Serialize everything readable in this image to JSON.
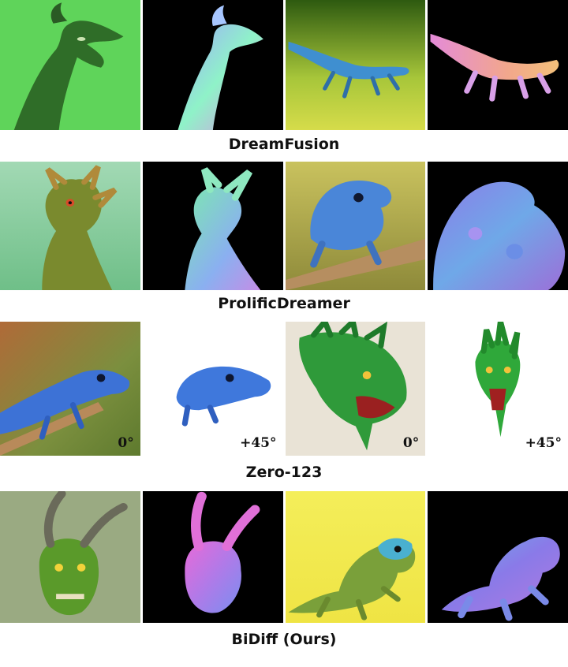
{
  "rows": [
    {
      "caption": "DreamFusion",
      "panels": [
        {
          "subject": "dragon-rgb",
          "background": "#5fd45a"
        },
        {
          "subject": "dragon-normal",
          "background": "#000000"
        },
        {
          "subject": "lizard-rgb",
          "background": "#b8cf3a"
        },
        {
          "subject": "lizard-normal",
          "background": "#000000"
        }
      ]
    },
    {
      "caption": "ProlificDreamer",
      "panels": [
        {
          "subject": "dragon-rgb",
          "background": "#8fcfa4"
        },
        {
          "subject": "dragon-normal",
          "background": "#000000"
        },
        {
          "subject": "lizard-rgb",
          "background": "#b9b352"
        },
        {
          "subject": "lizard-normal",
          "background": "#000000"
        }
      ]
    },
    {
      "caption": "Zero-123",
      "panels": [
        {
          "subject": "lizard-rgb",
          "background": "#7b8f3e",
          "angle": "0°"
        },
        {
          "subject": "lizard-rgb",
          "background": "#ffffff",
          "angle": "+45°"
        },
        {
          "subject": "dragon-head",
          "background": "#e9e3d6",
          "angle": "0°"
        },
        {
          "subject": "dragon-head",
          "background": "#ffffff",
          "angle": "+45°"
        }
      ]
    },
    {
      "caption": "BiDiff (Ours)",
      "panels": [
        {
          "subject": "dragon-rgb",
          "background": "#9aaa82"
        },
        {
          "subject": "dragon-normal",
          "background": "#000000"
        },
        {
          "subject": "lizard-rgb",
          "background": "#f2ea4a"
        },
        {
          "subject": "lizard-normal",
          "background": "#000000"
        }
      ]
    }
  ]
}
